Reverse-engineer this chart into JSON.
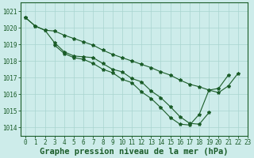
{
  "title": "Graphe pression niveau de la mer (hPa)",
  "background_color": "#cdecea",
  "grid_color": "#a8d5cf",
  "line_color": "#1a5c28",
  "xlim": [
    -0.5,
    23
  ],
  "ylim": [
    1013.5,
    1021.5
  ],
  "yticks": [
    1014,
    1015,
    1016,
    1017,
    1018,
    1019,
    1020,
    1021
  ],
  "xticks": [
    0,
    1,
    2,
    3,
    4,
    5,
    6,
    7,
    8,
    9,
    10,
    11,
    12,
    13,
    14,
    15,
    16,
    17,
    18,
    19,
    20,
    21,
    22,
    23
  ],
  "series1_x": [
    0,
    1,
    2,
    3,
    4,
    5,
    6,
    7,
    8,
    9,
    10,
    11,
    12,
    13,
    14,
    15,
    16,
    17,
    18,
    19
  ],
  "series1_y": [
    1020.6,
    1020.1,
    1019.85,
    1019.1,
    1018.55,
    1018.3,
    1018.25,
    1018.2,
    1017.85,
    1017.5,
    1017.35,
    1016.95,
    1016.75,
    1016.2,
    1015.8,
    1015.25,
    1014.65,
    1014.25,
    1014.2,
    1014.9
  ],
  "series2_x": [
    0,
    1,
    2,
    3,
    4,
    5,
    6,
    7,
    8,
    9,
    10,
    11,
    12,
    13,
    14,
    15,
    16,
    17,
    18,
    19,
    20,
    21,
    22
  ],
  "series2_y": [
    1020.6,
    1020.1,
    1019.85,
    1019.8,
    1019.55,
    1019.35,
    1019.15,
    1018.95,
    1018.65,
    1018.4,
    1018.2,
    1018.0,
    1017.8,
    1017.6,
    1017.35,
    1017.15,
    1016.85,
    1016.6,
    1016.45,
    1016.25,
    1016.1,
    1016.5,
    1017.25
  ],
  "series3_x": [
    3,
    4,
    5,
    6,
    7,
    8,
    9,
    10,
    11,
    12,
    13,
    14,
    15,
    16,
    17,
    18,
    19,
    20,
    21,
    22
  ],
  "series3_y": [
    1018.95,
    1018.45,
    1018.2,
    1018.1,
    1017.85,
    1017.5,
    1017.3,
    1016.9,
    1016.7,
    1016.15,
    1015.75,
    1015.2,
    1014.6,
    1014.2,
    1014.15,
    1014.8,
    1016.25,
    1016.35,
    1017.15,
    null
  ],
  "title_fontsize": 7.5,
  "tick_fontsize": 5.5
}
